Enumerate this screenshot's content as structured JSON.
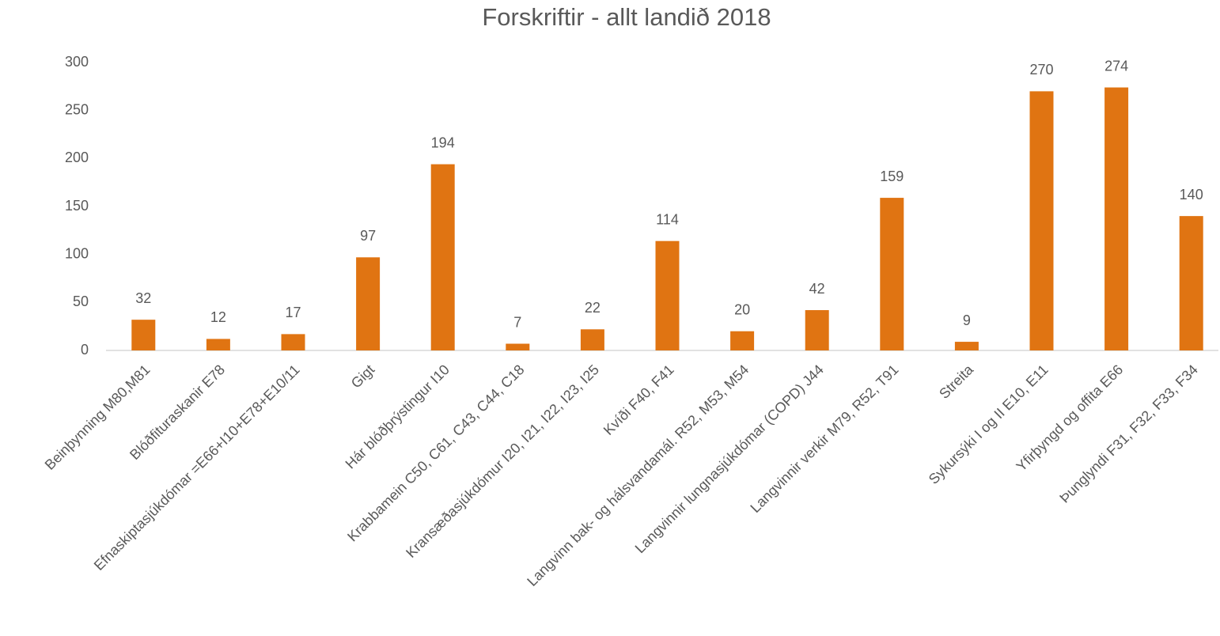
{
  "chart_data": {
    "type": "bar",
    "title": "Forskriftir - allt landið 2018",
    "categories": [
      "Beinþynning M80,M81",
      "Blóðfituraskanir E78",
      "Efnaskiptasjúkdómar =E66+I10+E78+E10/11",
      "Gigt",
      "Hár blóðþrýstingur I10",
      "Krabbamein C50, C61, C43, C44, C18",
      "Kransæðasjúkdómur I20, I21, I22, I23, I25",
      "Kvíði F40, F41",
      "Langvinn bak- og hálsvandamál. R52, M53, M54",
      "Langvinnir lungnasjúkdómar (COPD) J44",
      "Langvinnir verkir M79, R52, T91",
      "Streita",
      "Sykursýki I og II E10, E11",
      "Yfirþyngd og offita E66",
      "Þunglyndi F31, F32, F33, F34"
    ],
    "values": [
      32,
      12,
      17,
      97,
      194,
      7,
      22,
      114,
      20,
      42,
      159,
      9,
      270,
      274,
      140
    ],
    "color": "#e07412",
    "ylim": [
      0,
      300
    ],
    "yticks": [
      0,
      50,
      100,
      150,
      200,
      250,
      300
    ],
    "grid": false
  }
}
